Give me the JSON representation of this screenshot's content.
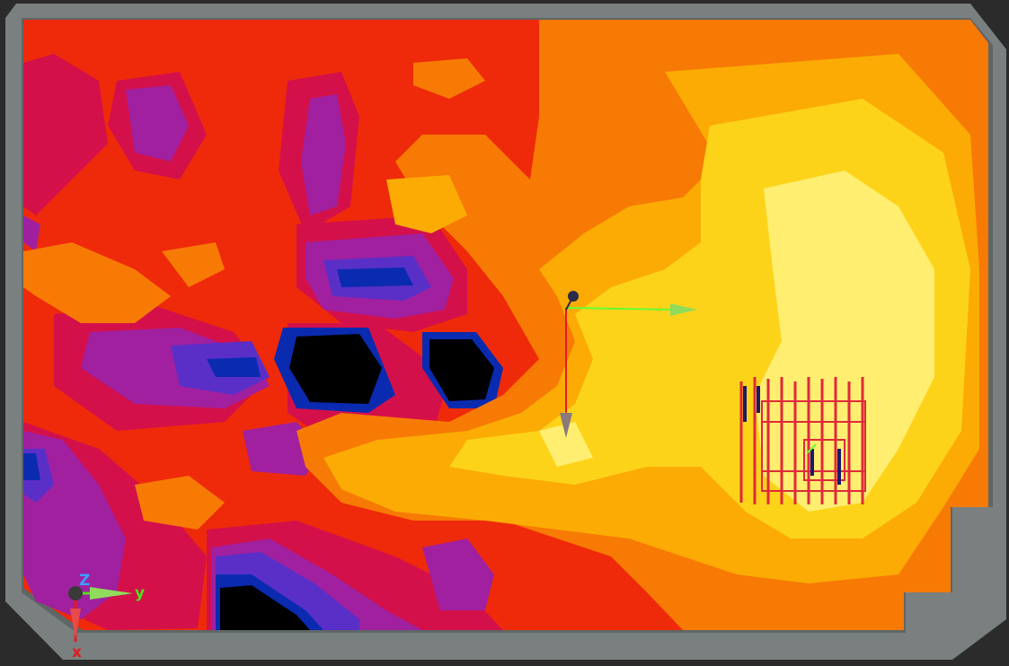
{
  "viewport": {
    "background": "#2b2b2b",
    "floor_slab_color": "#7a8080"
  },
  "heatmap": {
    "palette": [
      "#000000",
      "#0a2bb0",
      "#5a2fc8",
      "#a020a0",
      "#d4104a",
      "#ef2a0a",
      "#f77a05",
      "#fbab04",
      "#fdd31a",
      "#ffee70"
    ]
  },
  "local_gizmo": {
    "icon": "transform-gizmo-icon",
    "y_arrow_color": "#66ff33",
    "x_arrow_color": "#e11b1b"
  },
  "world_axes": {
    "icon": "world-axis-triad-icon",
    "labels": {
      "z": "Z",
      "y": "y",
      "x": "x"
    },
    "colors": {
      "z": "#3aa0ff",
      "y": "#55dd22",
      "x": "#e11b1b"
    }
  },
  "equipment": {
    "icon": "rack-grid-icon",
    "color": "#e02a3a"
  }
}
